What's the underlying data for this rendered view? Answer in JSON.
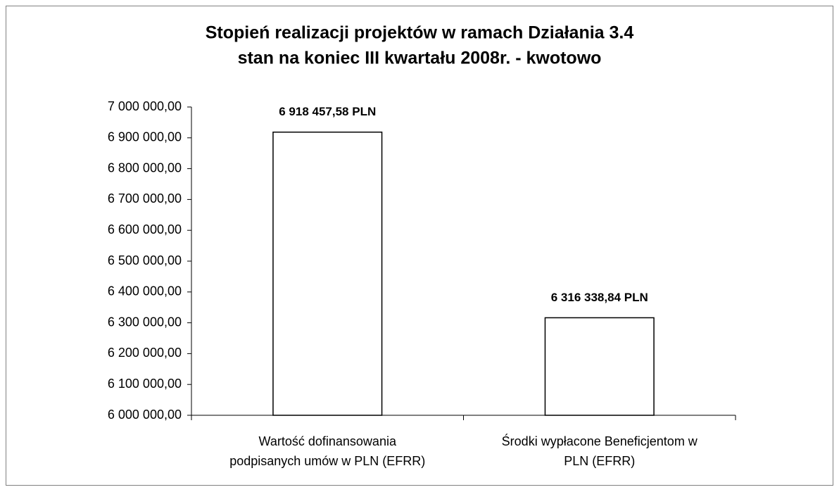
{
  "chart_data": {
    "type": "bar",
    "title": [
      "Stopień realizacji projektów w ramach Działania 3.4",
      "stan na koniec III kwartału 2008r. - kwotowo"
    ],
    "categories": [
      [
        "Wartość dofinansowania",
        "podpisanych umów w PLN (EFRR)"
      ],
      [
        "Środki wypłacone Beneficjentom w",
        "PLN (EFRR)"
      ]
    ],
    "values": [
      6918457.58,
      6316338.84
    ],
    "value_labels": [
      "6 918 457,58 PLN",
      "6 316 338,84 PLN"
    ],
    "color": "#ffffff",
    "ylim": [
      6000000,
      7000000
    ],
    "yticks": [
      {
        "value": 6000000,
        "label": "6 000 000,00"
      },
      {
        "value": 6100000,
        "label": "6 100 000,00"
      },
      {
        "value": 6200000,
        "label": "6 200 000,00"
      },
      {
        "value": 6300000,
        "label": "6 300 000,00"
      },
      {
        "value": 6400000,
        "label": "6 400 000,00"
      },
      {
        "value": 6500000,
        "label": "6 500 000,00"
      },
      {
        "value": 6600000,
        "label": "6 600 000,00"
      },
      {
        "value": 6700000,
        "label": "6 700 000,00"
      },
      {
        "value": 6800000,
        "label": "6 800 000,00"
      },
      {
        "value": 6900000,
        "label": "6 900 000,00"
      },
      {
        "value": 7000000,
        "label": "7 000 000,00"
      }
    ],
    "grid": false
  }
}
